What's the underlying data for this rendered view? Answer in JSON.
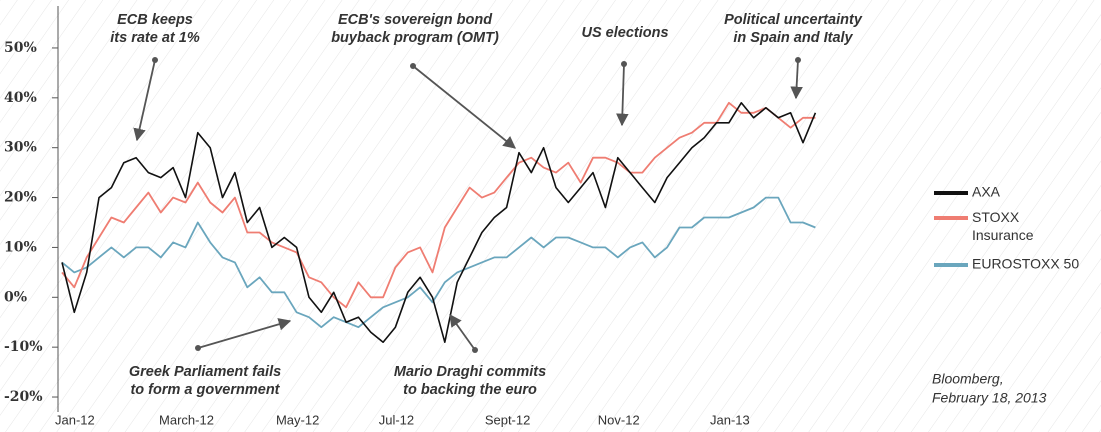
{
  "chart_data": {
    "type": "line",
    "categories": [
      "Jan-12",
      null,
      null,
      null,
      null,
      null,
      null,
      null,
      null,
      null,
      "March-12",
      null,
      null,
      null,
      null,
      null,
      null,
      null,
      null,
      "May-12",
      null,
      null,
      null,
      null,
      null,
      null,
      null,
      "Jul-12",
      null,
      null,
      null,
      null,
      null,
      null,
      null,
      null,
      "Sept-12",
      null,
      null,
      null,
      null,
      null,
      null,
      null,
      null,
      "Nov-12",
      null,
      null,
      null,
      null,
      null,
      null,
      null,
      null,
      "Jan-13",
      null,
      null,
      null,
      null,
      null,
      null,
      null
    ],
    "series": [
      {
        "name": "EUROSTOXX 50",
        "color": "#6aa6bd",
        "values": [
          7,
          5,
          6,
          8,
          10,
          8,
          10,
          10,
          8,
          11,
          10,
          15,
          11,
          8,
          7,
          2,
          4,
          1,
          1,
          -3,
          -4,
          -6,
          -4,
          -5,
          -6,
          -4,
          -2,
          -1,
          0,
          2,
          -1,
          3,
          5,
          6,
          7,
          8,
          8,
          10,
          12,
          10,
          12,
          12,
          11,
          10,
          10,
          8,
          10,
          11,
          8,
          10,
          14,
          14,
          16,
          16,
          16,
          17,
          18,
          20,
          20,
          15,
          15,
          14
        ]
      },
      {
        "name": "STOXX Insurance",
        "color": "#ef7d72",
        "values": [
          5,
          2,
          8,
          12,
          16,
          15,
          18,
          21,
          17,
          20,
          19,
          23,
          19,
          17,
          20,
          13,
          13,
          11,
          10,
          9,
          4,
          3,
          0,
          -2,
          3,
          0,
          0,
          6,
          9,
          10,
          5,
          14,
          18,
          22,
          20,
          21,
          24,
          27,
          28,
          26,
          25,
          27,
          23,
          28,
          28,
          27,
          25,
          25,
          28,
          30,
          32,
          33,
          35,
          35,
          39,
          37,
          37,
          38,
          36,
          34,
          36,
          36
        ]
      },
      {
        "name": "AXA",
        "color": "#111111",
        "values": [
          7,
          -3,
          5,
          20,
          22,
          27,
          28,
          25,
          24,
          26,
          20,
          33,
          30,
          20,
          25,
          15,
          18,
          10,
          12,
          10,
          0,
          -3,
          1,
          -5,
          -4,
          -7,
          -9,
          -6,
          1,
          4,
          0,
          -9,
          3,
          8,
          13,
          16,
          18,
          29,
          25,
          30,
          22,
          19,
          22,
          25,
          18,
          28,
          25,
          22,
          19,
          24,
          27,
          30,
          32,
          35,
          35,
          39,
          36,
          38,
          36,
          37,
          31,
          37
        ]
      }
    ],
    "ylim": [
      -22,
      53
    ],
    "yticks": [
      {
        "value": -20,
        "label": "-20%"
      },
      {
        "value": -10,
        "label": "-10%"
      },
      {
        "value": 0,
        "label": "0%"
      },
      {
        "value": 10,
        "label": "10%"
      },
      {
        "value": 20,
        "label": "20%"
      },
      {
        "value": 30,
        "label": "30%"
      },
      {
        "value": 40,
        "label": "40%"
      },
      {
        "value": 50,
        "label": "50%"
      }
    ],
    "legend": "right",
    "annotations": [
      {
        "lines": [
          "ECB keeps",
          "its rate at 1%"
        ]
      },
      {
        "lines": [
          "ECB's sovereign bond",
          "buyback program (OMT)"
        ]
      },
      {
        "lines": [
          "US elections"
        ]
      },
      {
        "lines": [
          "Political uncertainty",
          "in Spain and Italy"
        ]
      },
      {
        "lines": [
          "Greek Parliament fails",
          "to form a government"
        ]
      },
      {
        "lines": [
          "Mario Draghi commits",
          "to backing the euro"
        ]
      }
    ],
    "source": [
      "Bloomberg,",
      "February 18, 2013"
    ]
  }
}
